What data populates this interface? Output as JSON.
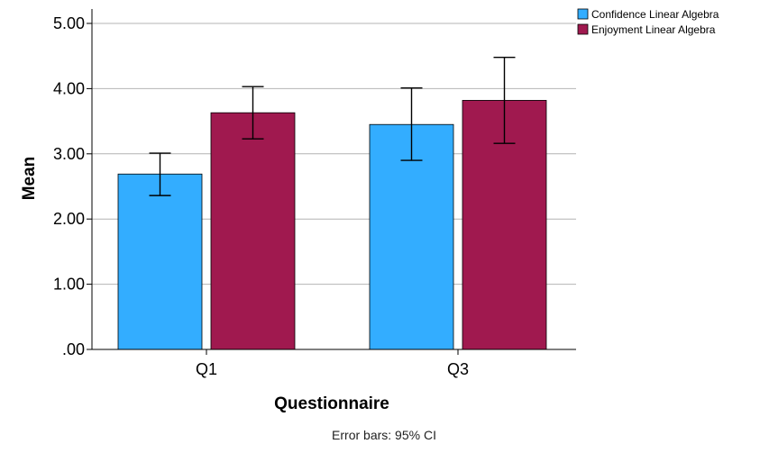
{
  "chart_data": {
    "type": "bar",
    "categories": [
      "Q1",
      "Q3"
    ],
    "series": [
      {
        "name": "Confidence Linear Algebra",
        "color": "#33adff",
        "values": [
          2.69,
          3.45
        ],
        "ci_low": [
          2.36,
          2.9
        ],
        "ci_high": [
          3.01,
          4.01
        ]
      },
      {
        "name": "Enjoyment Linear Algebra",
        "color": "#a0194f",
        "values": [
          3.63,
          3.82
        ],
        "ci_low": [
          3.23,
          3.16
        ],
        "ci_high": [
          4.03,
          4.48
        ]
      }
    ],
    "xlabel": "Questionnaire",
    "ylabel": "Mean",
    "ylim": [
      0,
      5.2
    ],
    "yticks": [
      ".00",
      "1.00",
      "2.00",
      "3.00",
      "4.00",
      "5.00"
    ],
    "ytick_values": [
      0,
      1,
      2,
      3,
      4,
      5
    ],
    "grid": true,
    "legend": "top-right",
    "footnote": "Error bars: 95% CI"
  }
}
